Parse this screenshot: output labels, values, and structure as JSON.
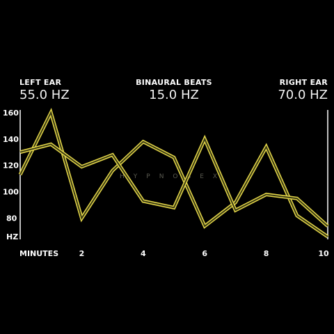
{
  "header": {
    "left": {
      "label": "LEFT EAR",
      "value": "55.0 HZ"
    },
    "center": {
      "label": "BINAURAL BEATS",
      "value": "15.0 HZ"
    },
    "right": {
      "label": "RIGHT EAR",
      "value": "70.0 HZ"
    }
  },
  "watermark": "HYPNOSEX",
  "colors": {
    "line": "#e6d84a",
    "line_fill": "#3a3a14",
    "axis": "#ffffff",
    "background": "#000000"
  },
  "chart_data": {
    "type": "line",
    "xlabel": "MINUTES",
    "ylabel": "HZ",
    "x_ticks": [
      2,
      4,
      6,
      8,
      10
    ],
    "y_ticks": [
      80,
      100,
      120,
      140,
      160
    ],
    "xlim": [
      0,
      10
    ],
    "ylim": [
      64,
      162
    ],
    "grid": false,
    "series": [
      {
        "x": [
          0,
          1,
          2,
          3,
          4,
          5,
          6,
          7,
          8,
          9,
          10
        ],
        "values": [
          113,
          160,
          80,
          116,
          138,
          126,
          74,
          92,
          134,
          82,
          66
        ]
      },
      {
        "x": [
          0,
          1,
          2,
          3,
          4,
          5,
          6,
          7,
          8,
          9,
          10
        ],
        "values": [
          130,
          136,
          119,
          128,
          93,
          88,
          140,
          86,
          98,
          95,
          74
        ]
      }
    ]
  }
}
